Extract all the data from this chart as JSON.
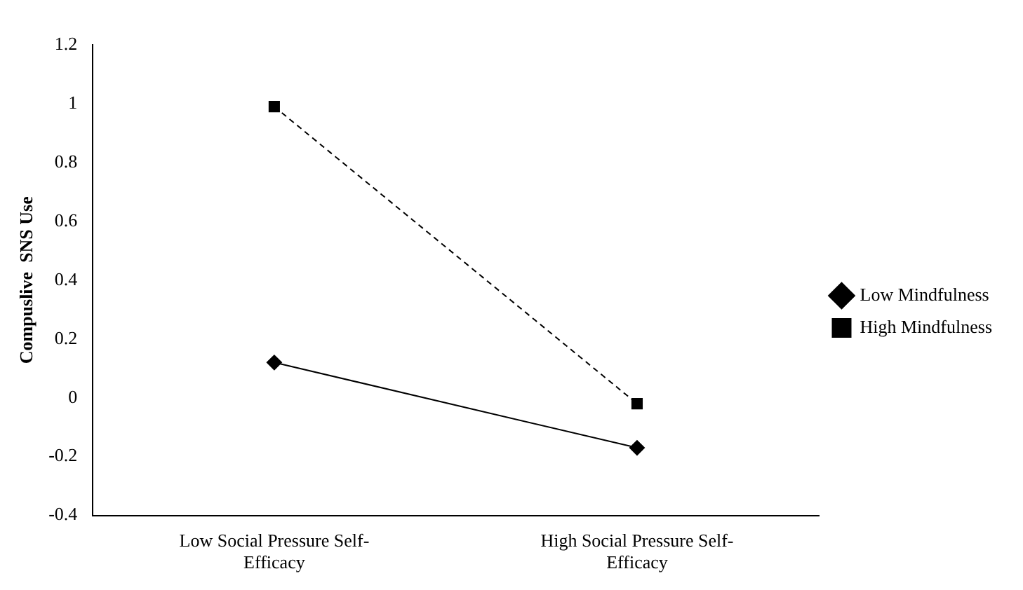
{
  "chart_data": {
    "type": "line",
    "ylabel": "Compuslive  SNS Use",
    "categories": [
      "Low Social Pressure Self-Efficacy",
      "High Social Pressure Self-Efficacy"
    ],
    "series": [
      {
        "name": "Low Mindfulness",
        "color": "#000000",
        "values": [
          0.12,
          -0.17
        ],
        "marker": "diamond",
        "line_style": "solid"
      },
      {
        "name": "High Mindfulness",
        "color": "#000000",
        "values": [
          0.99,
          -0.02
        ],
        "marker": "square",
        "line_style": "dashed"
      }
    ],
    "ylim": [
      -0.4,
      1.2
    ],
    "yticks": [
      -0.4,
      -0.2,
      0,
      0.2,
      0.4,
      0.6,
      0.8,
      1,
      1.2
    ],
    "grid": false,
    "legend": "right"
  }
}
